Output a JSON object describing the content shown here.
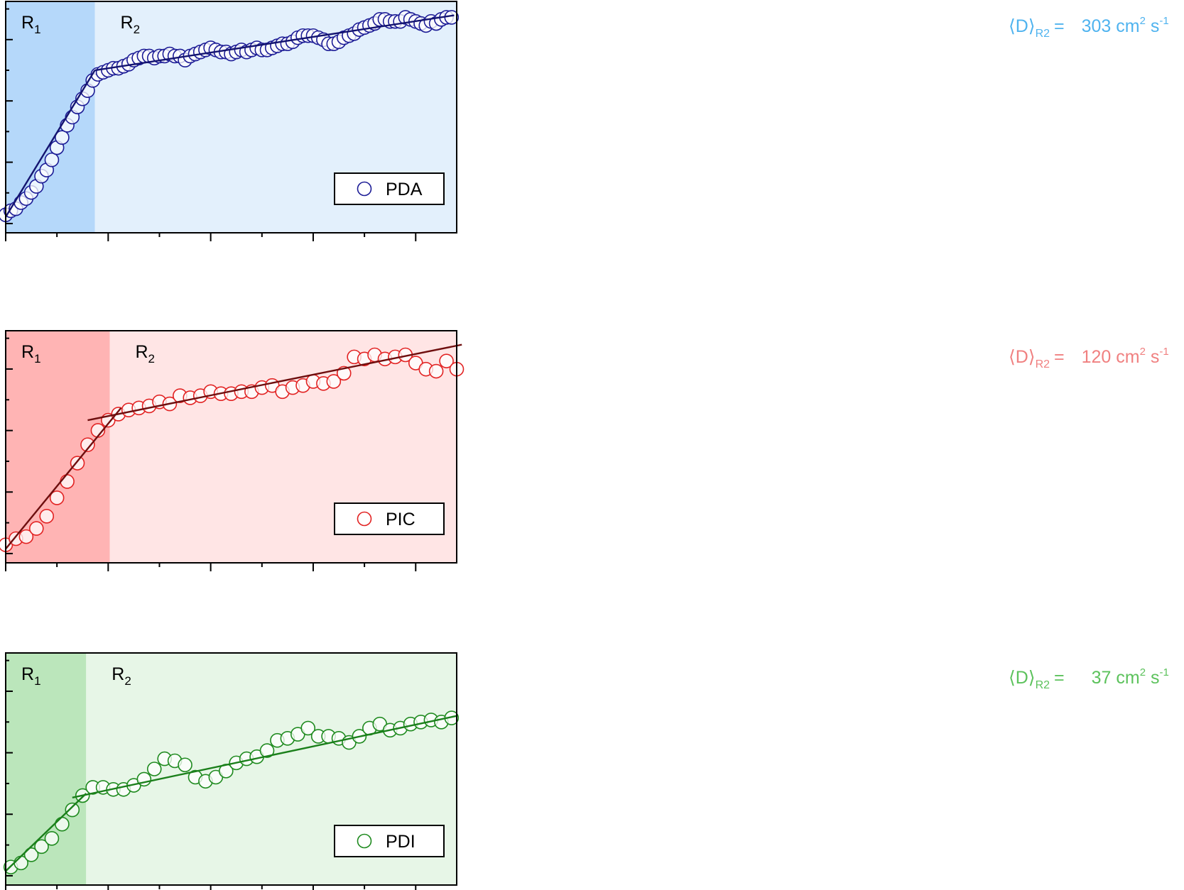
{
  "chart_data": [
    {
      "type": "scatter",
      "legend": "PDA",
      "legend_placement": "bottom-right",
      "regions": [
        "R1",
        "R2"
      ],
      "annotation": {
        "prefix": "⟨D⟩",
        "subscript": "R2",
        "equals": "=",
        "value": "303 cm",
        "sup1": "2",
        "unit": " s",
        "sup2": "-1"
      },
      "colors": {
        "marker": "#1c1c96",
        "fit": "#141470",
        "region1": "#b5d8fa",
        "region2": "#e3f0fc",
        "annotation": "#4fb3ef"
      },
      "boundary": 1.74,
      "xlim": [
        0,
        8.8
      ],
      "ylim": [
        0,
        10
      ],
      "x": [
        0.0,
        0.1,
        0.2,
        0.3,
        0.4,
        0.5,
        0.6,
        0.7,
        0.8,
        0.9,
        1.0,
        1.1,
        1.2,
        1.3,
        1.4,
        1.5,
        1.6,
        1.7,
        1.8,
        1.9,
        2.0,
        2.1,
        2.2,
        2.3,
        2.4,
        2.5,
        2.6,
        2.7,
        2.8,
        2.9,
        3.0,
        3.1,
        3.2,
        3.3,
        3.4,
        3.5,
        3.6,
        3.7,
        3.8,
        3.9,
        4.0,
        4.1,
        4.2,
        4.3,
        4.4,
        4.5,
        4.6,
        4.7,
        4.8,
        4.9,
        5.0,
        5.1,
        5.2,
        5.3,
        5.4,
        5.5,
        5.6,
        5.7,
        5.8,
        5.9,
        6.0,
        6.1,
        6.2,
        6.3,
        6.4,
        6.5,
        6.6,
        6.7,
        6.8,
        6.9,
        7.0,
        7.1,
        7.2,
        7.3,
        7.4,
        7.5,
        7.6,
        7.7,
        7.8,
        7.9,
        8.0,
        8.1,
        8.2,
        8.3,
        8.4,
        8.5,
        8.6,
        8.7
      ],
      "y": [
        0.2,
        0.4,
        0.5,
        0.8,
        1.0,
        1.3,
        1.6,
        2.1,
        2.4,
        2.9,
        3.5,
        4.0,
        4.6,
        5.0,
        5.5,
        5.9,
        6.3,
        6.8,
        7.1,
        7.2,
        7.3,
        7.4,
        7.4,
        7.5,
        7.6,
        7.8,
        7.9,
        8.0,
        8.0,
        7.9,
        8.0,
        8.0,
        8.1,
        8.0,
        8.0,
        7.8,
        8.0,
        8.1,
        8.2,
        8.3,
        8.4,
        8.3,
        8.2,
        8.2,
        8.1,
        8.2,
        8.3,
        8.2,
        8.3,
        8.4,
        8.3,
        8.3,
        8.4,
        8.5,
        8.6,
        8.6,
        8.7,
        8.9,
        9.0,
        9.0,
        9.0,
        8.9,
        8.8,
        8.6,
        8.6,
        8.7,
        8.9,
        9.0,
        9.1,
        9.3,
        9.4,
        9.5,
        9.6,
        9.8,
        9.8,
        9.7,
        9.7,
        9.7,
        9.9,
        9.8,
        9.7,
        9.6,
        9.5,
        9.7,
        9.6,
        9.8,
        9.9,
        9.9
      ],
      "fit_r1": {
        "x0": 0.0,
        "x1": 1.74,
        "y0": 0.1,
        "y1": 7.3
      },
      "fit_r2": {
        "x0": 1.74,
        "x1": 8.75,
        "y0": 7.3,
        "y1": 10.0
      }
    },
    {
      "type": "scatter",
      "legend": "PIC",
      "legend_placement": "bottom-right",
      "regions": [
        "R1",
        "R2"
      ],
      "annotation": {
        "prefix": "⟨D⟩",
        "subscript": "R2",
        "equals": "=",
        "value": "120 cm",
        "sup1": "2",
        "unit": " s",
        "sup2": "-1"
      },
      "colors": {
        "marker": "#e22222",
        "fit": "#6e0e0e",
        "region1": "#ffb4b4",
        "region2": "#ffe5e5",
        "annotation": "#f08080"
      },
      "boundary": 2.03,
      "xlim": [
        0,
        8.8
      ],
      "ylim": [
        0,
        10
      ],
      "x": [
        0.0,
        0.2,
        0.4,
        0.6,
        0.8,
        1.0,
        1.2,
        1.4,
        1.6,
        1.8,
        2.0,
        2.2,
        2.4,
        2.6,
        2.8,
        3.0,
        3.2,
        3.4,
        3.6,
        3.8,
        4.0,
        4.2,
        4.4,
        4.6,
        4.8,
        5.0,
        5.2,
        5.4,
        5.6,
        5.8,
        6.0,
        6.2,
        6.4,
        6.6,
        6.8,
        7.0,
        7.2,
        7.4,
        7.6,
        7.8,
        8.0,
        8.2,
        8.4,
        8.6,
        8.8
      ],
      "y": [
        0.2,
        0.5,
        0.6,
        1.0,
        1.6,
        2.5,
        3.3,
        4.2,
        5.1,
        5.8,
        6.3,
        6.6,
        6.8,
        6.9,
        7.0,
        7.2,
        7.1,
        7.5,
        7.4,
        7.5,
        7.7,
        7.6,
        7.6,
        7.7,
        7.7,
        7.9,
        8.0,
        7.7,
        7.9,
        8.0,
        8.2,
        8.1,
        8.2,
        8.6,
        9.4,
        9.3,
        9.5,
        9.3,
        9.4,
        9.5,
        9.1,
        8.8,
        8.7,
        9.2,
        8.8
      ],
      "fit_r1": {
        "x0": 0.0,
        "x1": 2.25,
        "y0": 0.0,
        "y1": 6.9
      },
      "fit_r2": {
        "x0": 1.6,
        "x1": 8.9,
        "y0": 6.3,
        "y1": 10.0
      }
    },
    {
      "type": "scatter",
      "legend": "PDI",
      "legend_placement": "bottom-right",
      "regions": [
        "R1",
        "R2"
      ],
      "annotation": {
        "prefix": "⟨D⟩",
        "subscript": "R2",
        "equals": "=",
        "value": "37 cm",
        "sup1": "2",
        "unit": " s",
        "sup2": "-1"
      },
      "colors": {
        "marker": "#1e8a1e",
        "fit": "#1a7f1a",
        "region1": "#bbe6bb",
        "region2": "#e7f6e7",
        "annotation": "#5cc25c"
      },
      "boundary": 1.57,
      "xlim": [
        0,
        8.8
      ],
      "ylim": [
        0,
        10
      ],
      "x": [
        0.1,
        0.3,
        0.5,
        0.7,
        0.9,
        1.1,
        1.3,
        1.5,
        1.7,
        1.9,
        2.1,
        2.3,
        2.5,
        2.7,
        2.9,
        3.1,
        3.3,
        3.5,
        3.7,
        3.9,
        4.1,
        4.3,
        4.5,
        4.7,
        4.9,
        5.1,
        5.3,
        5.5,
        5.7,
        5.9,
        6.1,
        6.3,
        6.5,
        6.7,
        6.9,
        7.1,
        7.3,
        7.5,
        7.7,
        7.9,
        8.1,
        8.3,
        8.5,
        8.7
      ],
      "y": [
        0.2,
        0.4,
        0.8,
        1.2,
        1.6,
        2.3,
        3.0,
        3.7,
        4.1,
        4.1,
        4.0,
        4.0,
        4.2,
        4.5,
        5.0,
        5.5,
        5.4,
        5.2,
        4.6,
        4.4,
        4.6,
        4.9,
        5.3,
        5.5,
        5.6,
        5.9,
        6.4,
        6.5,
        6.7,
        7.0,
        6.6,
        6.6,
        6.5,
        6.3,
        6.6,
        7.0,
        7.2,
        6.9,
        7.0,
        7.2,
        7.3,
        7.4,
        7.3,
        7.5
      ],
      "fit_r1": {
        "x0": 0.0,
        "x1": 1.57,
        "y0": 0.0,
        "y1": 3.8
      },
      "fit_r2": {
        "x0": 1.3,
        "x1": 8.8,
        "y0": 3.6,
        "y1": 7.6
      }
    }
  ]
}
